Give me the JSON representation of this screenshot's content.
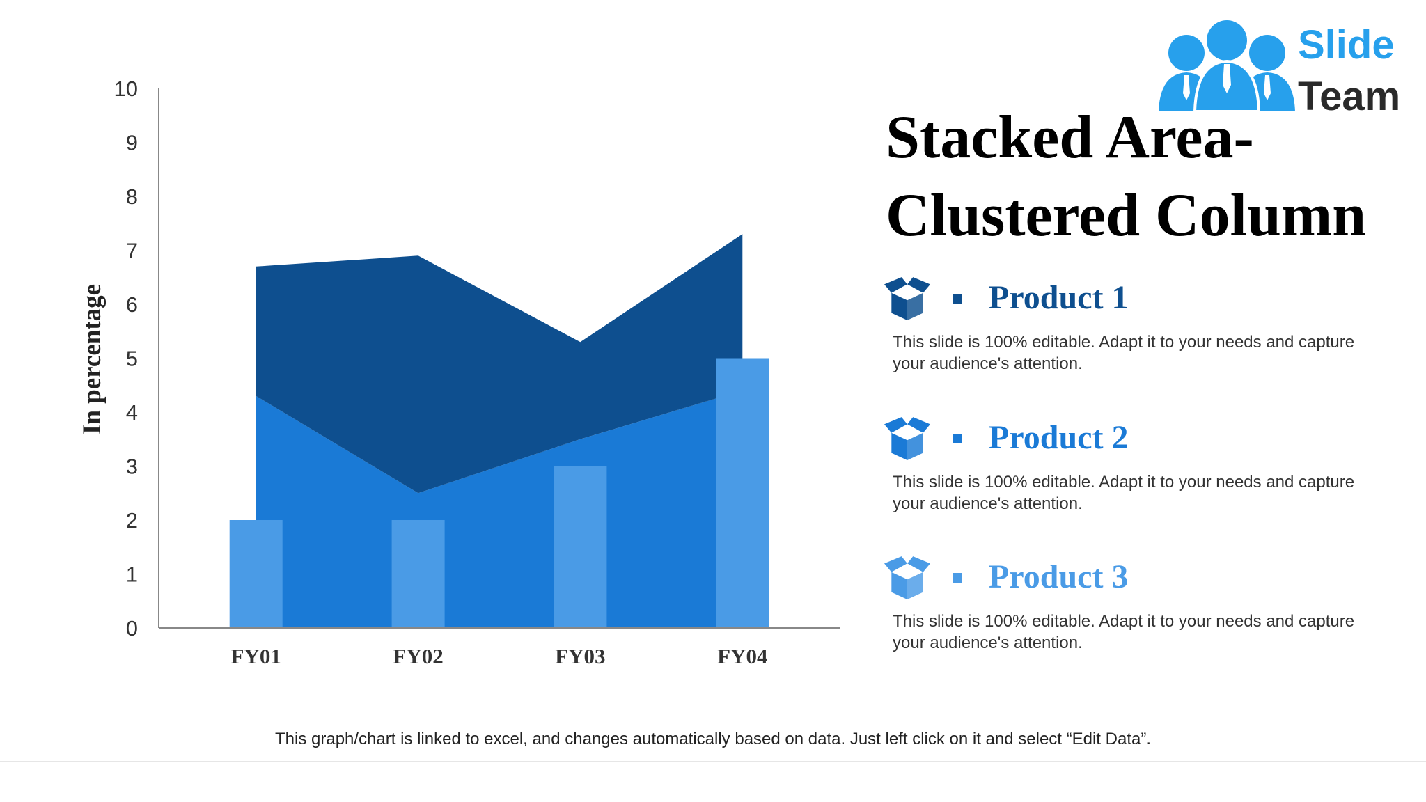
{
  "title": "Stacked Area-Clustered Column",
  "logo": {
    "word1": "Slide",
    "word2": "Team",
    "color": "#27a0ec"
  },
  "products": [
    {
      "title": "Product 1",
      "description": "This slide is 100% editable. Adapt it to your needs and capture your audience's attention.",
      "color": "#0e4f8f",
      "icon": "box-icon"
    },
    {
      "title": "Product 2",
      "description": "This slide is 100% editable. Adapt it to your needs and capture your audience's attention.",
      "color": "#1a7ad6",
      "icon": "box-icon"
    },
    {
      "title": "Product 3",
      "description": "This slide is 100% editable. Adapt it to your needs and capture your audience's attention.",
      "color": "#4a9be6",
      "icon": "box-icon"
    }
  ],
  "footer_note": "This graph/chart is linked to excel, and changes automatically based on data. Just left click on it and select “Edit Data”.",
  "chart_data": {
    "type": "area",
    "categories": [
      "FY01",
      "FY02",
      "FY03",
      "FY04"
    ],
    "ylabel": "In percentage",
    "xlabel": "",
    "ylim": [
      0,
      10
    ],
    "yticks": [
      0,
      1,
      2,
      3,
      4,
      5,
      6,
      7,
      8,
      9,
      10
    ],
    "grid": false,
    "series": [
      {
        "name": "Product 1",
        "kind": "area-stacked",
        "values": [
          2.4,
          4.4,
          1.8,
          2.9
        ],
        "color": "#0e4f8f"
      },
      {
        "name": "Product 2",
        "kind": "area-stacked",
        "values": [
          4.3,
          2.5,
          3.5,
          4.4
        ],
        "color": "#1a7ad6"
      },
      {
        "name": "Product 3",
        "kind": "column",
        "values": [
          2,
          2,
          3,
          5
        ],
        "color": "#4a9be6"
      }
    ]
  }
}
